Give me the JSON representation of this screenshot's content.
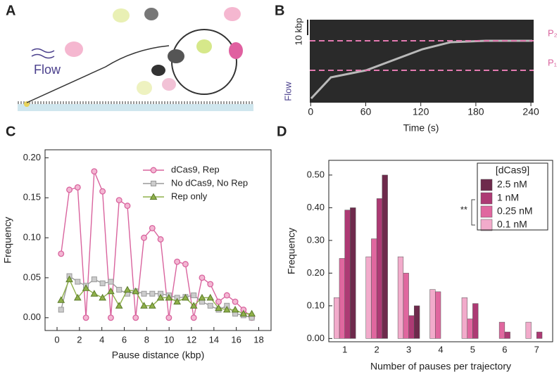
{
  "panel_labels": [
    "A",
    "B",
    "C",
    "D"
  ],
  "panel_a": {
    "flow_label": "Flow"
  },
  "panel_b": {
    "scale_label": "10 kbp",
    "flow_label": "Flow",
    "top_label": "P₂",
    "bottom_label": "P₁",
    "xlabel": "Time (s)",
    "xlim": [
      -1,
      243
    ],
    "xticks": [
      0,
      60,
      120,
      180,
      240
    ]
  },
  "chart_data": [
    {
      "type": "line",
      "xlabel": "Pause distance (kbp)",
      "ylabel": "Frequency",
      "x": [
        0.36,
        1.1,
        1.84,
        2.58,
        3.32,
        4.06,
        4.8,
        5.54,
        6.28,
        7.02,
        7.76,
        8.5,
        9.24,
        9.98,
        10.72,
        11.46,
        12.2,
        12.94,
        13.68,
        14.42,
        15.16,
        15.9,
        16.64,
        17.38
      ],
      "xlim": [
        -1.07,
        19.1
      ],
      "xticks": [
        0,
        2,
        4,
        6,
        8,
        10,
        12,
        14,
        16,
        18
      ],
      "ylim": [
        -0.016,
        0.21
      ],
      "yticks": [
        {
          "value": 0,
          "label": "0.00"
        },
        {
          "value": 0.05,
          "label": "0.05"
        },
        {
          "value": 0.1,
          "label": "0.10"
        },
        {
          "value": 0.15,
          "label": "0.15"
        },
        {
          "value": 0.2,
          "label": "0.20"
        }
      ],
      "series": [
        {
          "name": "dCas9, Rep",
          "color": "#d9649e",
          "marker": "circle",
          "values": [
            0.08,
            0.16,
            0.163,
            0,
            0.183,
            0.158,
            0,
            0.147,
            0.14,
            0,
            0.1,
            0.112,
            0.098,
            0,
            0.07,
            0.067,
            0,
            0.05,
            0.042,
            0.02,
            0.028,
            0.02,
            0.01,
            0
          ]
        },
        {
          "name": "No dCas9, No Rep",
          "color": "#9a9a9a",
          "marker": "square",
          "values": [
            0.01,
            0.052,
            0.045,
            0.04,
            0.048,
            0.043,
            0.045,
            0.035,
            0.03,
            0.033,
            0.03,
            0.03,
            0.03,
            0.028,
            0.025,
            0.026,
            0.028,
            0.02,
            0.015,
            0.01,
            0.015,
            0.005,
            0.003,
            0
          ]
        },
        {
          "name": "Rep only",
          "color": "#8fb04a",
          "marker": "triangle",
          "values": [
            0.022,
            0.048,
            0.025,
            0.037,
            0.03,
            0.025,
            0.033,
            0.015,
            0.035,
            0.033,
            0.015,
            0.015,
            0.025,
            0.025,
            0.02,
            0.025,
            0.015,
            0.025,
            0.025,
            0.012,
            0.01,
            0.01,
            0.005,
            0.005
          ]
        }
      ]
    },
    {
      "type": "bar",
      "xlabel": "Number of pauses per trajectory",
      "ylabel": "Frequency",
      "categories": [
        "1",
        "2",
        "3",
        "4",
        "5",
        "6",
        "7"
      ],
      "ylim": [
        -0.01,
        0.545
      ],
      "yticks": [
        {
          "value": 0,
          "label": "0.00"
        },
        {
          "value": 0.1,
          "label": "0.10"
        },
        {
          "value": 0.2,
          "label": "0.20"
        },
        {
          "value": 0.3,
          "label": "0.30"
        },
        {
          "value": 0.4,
          "label": "0.40"
        },
        {
          "value": 0.5,
          "label": "0.50"
        }
      ],
      "legend_title": "[dCas9]",
      "annotation": "**",
      "series": [
        {
          "name": "2.5 nM",
          "color": "#6e2a4c",
          "values": [
            0.4,
            0.5,
            0.1,
            0,
            0,
            0,
            0
          ]
        },
        {
          "name": "1 nM",
          "color": "#ad3a74",
          "values": [
            0.393,
            0.428,
            0.07,
            0,
            0.107,
            0.02,
            0.02
          ]
        },
        {
          "name": "0.25 nM",
          "color": "#e0679f",
          "values": [
            0.245,
            0.305,
            0.2,
            0.143,
            0.06,
            0.05,
            0
          ]
        },
        {
          "name": "0.1 nM",
          "color": "#f2abcb",
          "values": [
            0.125,
            0.25,
            0.25,
            0.15,
            0.125,
            0,
            0.05
          ]
        }
      ]
    }
  ]
}
